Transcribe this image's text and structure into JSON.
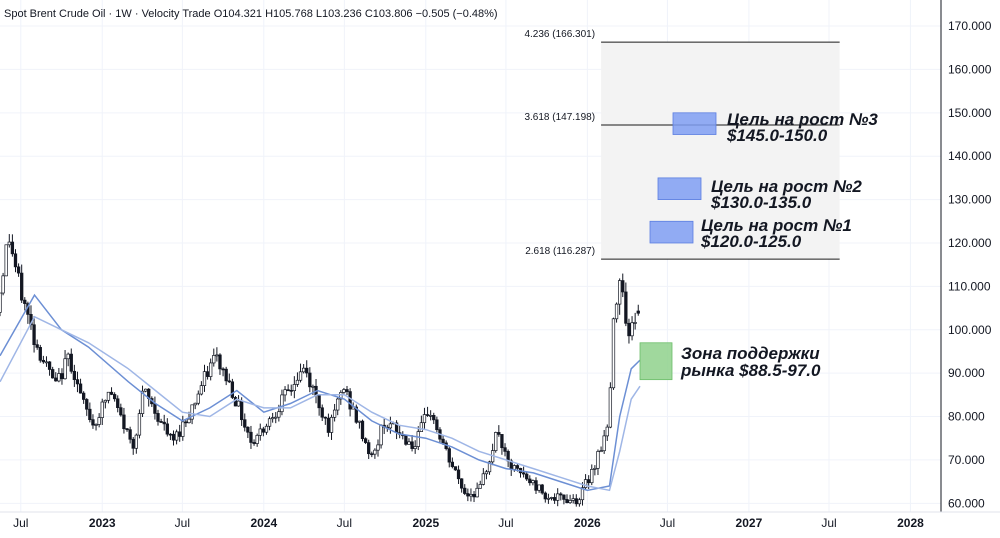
{
  "header": {
    "symbol": "Spot Brent Crude Oil",
    "interval": "1W",
    "source": "Velocity Trade",
    "open": "O104.321",
    "high": "H105.768",
    "low": "L103.236",
    "close": "C103.806",
    "change": "−0.505 (−0.48%)"
  },
  "chart_data": {
    "type": "candlestick",
    "title": "Spot Brent Crude Oil · 1W · Velocity Trade",
    "ylim": [
      58,
      176
    ],
    "y_ticks": [
      "170.000",
      "160.000",
      "150.000",
      "140.000",
      "130.000",
      "120.000",
      "110.000",
      "100.000",
      "90.000",
      "80.000",
      "70.000",
      "60.000"
    ],
    "y_tick_values": [
      170,
      160,
      150,
      140,
      130,
      120,
      110,
      100,
      90,
      80,
      70,
      60
    ],
    "x_range": [
      "2022-05-15",
      "2028-03-10"
    ],
    "x_ticks": [
      {
        "label": "Jul",
        "date": "2022-07-01",
        "bold": false
      },
      {
        "label": "2023",
        "date": "2023-01-01",
        "bold": true
      },
      {
        "label": "Jul",
        "date": "2023-07-01",
        "bold": false
      },
      {
        "label": "2024",
        "date": "2024-01-01",
        "bold": true
      },
      {
        "label": "Jul",
        "date": "2024-07-01",
        "bold": false
      },
      {
        "label": "2025",
        "date": "2025-01-01",
        "bold": true
      },
      {
        "label": "Jul",
        "date": "2025-07-01",
        "bold": false
      },
      {
        "label": "2026",
        "date": "2026-01-01",
        "bold": true
      },
      {
        "label": "Jul",
        "date": "2026-07-01",
        "bold": false
      },
      {
        "label": "2027",
        "date": "2027-01-01",
        "bold": true
      },
      {
        "label": "Jul",
        "date": "2027-07-01",
        "bold": false
      },
      {
        "label": "2028",
        "date": "2028-01-01",
        "bold": true
      }
    ],
    "price_path": [
      [
        "2022-05-15",
        104
      ],
      [
        "2022-06-10",
        122
      ],
      [
        "2022-07-05",
        110
      ],
      [
        "2022-08-10",
        97
      ],
      [
        "2022-09-25",
        87
      ],
      [
        "2022-10-25",
        94
      ],
      [
        "2022-11-25",
        83
      ],
      [
        "2022-12-20",
        78
      ],
      [
        "2023-01-25",
        86
      ],
      [
        "2023-03-18",
        73
      ],
      [
        "2023-04-12",
        86
      ],
      [
        "2023-06-15",
        74
      ],
      [
        "2023-07-20",
        80
      ],
      [
        "2023-09-20",
        94
      ],
      [
        "2023-10-25",
        87
      ],
      [
        "2023-12-12",
        74
      ],
      [
        "2024-01-25",
        80
      ],
      [
        "2024-04-08",
        91
      ],
      [
        "2024-06-05",
        77
      ],
      [
        "2024-07-05",
        87
      ],
      [
        "2024-09-10",
        70
      ],
      [
        "2024-10-05",
        79
      ],
      [
        "2024-12-15",
        73
      ],
      [
        "2025-01-15",
        82
      ],
      [
        "2025-02-25",
        71
      ],
      [
        "2025-04-08",
        62
      ],
      [
        "2025-05-10",
        63
      ],
      [
        "2025-06-20",
        77
      ],
      [
        "2025-07-10",
        69
      ],
      [
        "2025-08-20",
        66
      ],
      [
        "2025-10-20",
        61
      ],
      [
        "2025-12-20",
        61
      ],
      [
        "2026-01-20",
        68
      ],
      [
        "2026-02-25",
        78
      ],
      [
        "2026-03-10",
        105
      ],
      [
        "2026-03-25",
        114
      ],
      [
        "2026-04-10",
        98
      ],
      [
        "2026-04-30",
        104
      ]
    ],
    "last_bar": {
      "open": 104.321,
      "high": 105.768,
      "low": 103.236,
      "close": 103.806
    },
    "series": [
      {
        "name": "",
        "color": "#6c8fd4",
        "values": [
          [
            "2022-05-15",
            94
          ],
          [
            "2022-08-01",
            108
          ],
          [
            "2022-10-01",
            100
          ],
          [
            "2022-12-01",
            96
          ],
          [
            "2023-03-01",
            88
          ],
          [
            "2023-05-01",
            83
          ],
          [
            "2023-07-01",
            79
          ],
          [
            "2023-09-01",
            82
          ],
          [
            "2023-11-01",
            86
          ],
          [
            "2024-01-01",
            81
          ],
          [
            "2024-03-01",
            83
          ],
          [
            "2024-05-01",
            86
          ],
          [
            "2024-07-01",
            84
          ],
          [
            "2024-09-01",
            79
          ],
          [
            "2024-11-01",
            76
          ],
          [
            "2025-01-01",
            75
          ],
          [
            "2025-03-01",
            73
          ],
          [
            "2025-05-01",
            70
          ],
          [
            "2025-07-01",
            68
          ],
          [
            "2025-09-01",
            67
          ],
          [
            "2025-11-01",
            65
          ],
          [
            "2026-01-01",
            63
          ],
          [
            "2026-02-20",
            64
          ],
          [
            "2026-03-15",
            80
          ],
          [
            "2026-04-10",
            91
          ],
          [
            "2026-04-30",
            93
          ]
        ]
      },
      {
        "name": "",
        "color": "#9fb6e6",
        "values": [
          [
            "2022-05-15",
            88
          ],
          [
            "2022-08-01",
            103
          ],
          [
            "2022-10-01",
            100
          ],
          [
            "2022-12-01",
            97
          ],
          [
            "2023-03-01",
            91
          ],
          [
            "2023-05-01",
            86
          ],
          [
            "2023-07-01",
            81
          ],
          [
            "2023-09-01",
            80
          ],
          [
            "2023-11-01",
            84
          ],
          [
            "2024-01-01",
            82
          ],
          [
            "2024-03-01",
            82
          ],
          [
            "2024-05-01",
            85
          ],
          [
            "2024-07-01",
            85
          ],
          [
            "2024-09-01",
            81
          ],
          [
            "2024-11-01",
            78
          ],
          [
            "2025-01-01",
            77
          ],
          [
            "2025-03-01",
            75
          ],
          [
            "2025-05-01",
            72
          ],
          [
            "2025-07-01",
            70
          ],
          [
            "2025-09-01",
            68
          ],
          [
            "2025-11-01",
            66
          ],
          [
            "2026-01-01",
            64
          ],
          [
            "2026-02-20",
            63
          ],
          [
            "2026-03-15",
            72
          ],
          [
            "2026-04-10",
            84
          ],
          [
            "2026-04-30",
            87
          ]
        ]
      }
    ],
    "fib_levels": [
      {
        "label": "4.236 (166.301)",
        "value": 166.301
      },
      {
        "label": "3.618 (147.198)",
        "value": 147.198
      },
      {
        "label": "2.618 (116.287)",
        "value": 116.287
      }
    ],
    "target_zone": {
      "from": "2026-02-01",
      "to": "2027-07-25",
      "low": 116.287,
      "high": 166.301,
      "color": "#f3f3f3"
    },
    "annotations": [
      {
        "line1": "Цель на рост №3",
        "line2": "$145.0-150.0",
        "low": 145.0,
        "high": 150.0,
        "color": "#7f9df2"
      },
      {
        "line1": "Цель на рост №2",
        "line2": "$130.0-135.0",
        "low": 130.0,
        "high": 135.0,
        "color": "#7f9df2"
      },
      {
        "line1": "Цель на рост №1",
        "line2": "$120.0-125.0",
        "low": 120.0,
        "high": 125.0,
        "color": "#7f9df2"
      },
      {
        "line1": "Зона поддержки",
        "line2": "рынка $88.5-97.0",
        "low": 88.5,
        "high": 97.0,
        "color": "#8fd18c"
      }
    ]
  }
}
